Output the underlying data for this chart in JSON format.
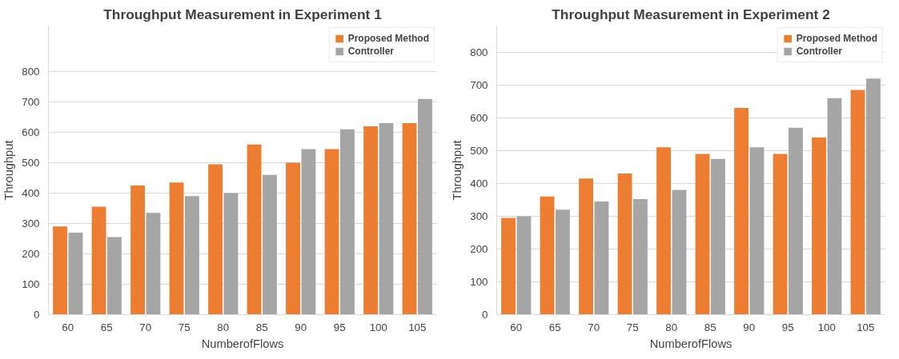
{
  "chart_data": [
    {
      "type": "bar",
      "title": "Throughput Measurement in Experiment 1",
      "xlabel": "NumberofFlows",
      "ylabel": "Throughput",
      "categories": [
        "60",
        "65",
        "70",
        "75",
        "80",
        "85",
        "90",
        "95",
        "100",
        "105"
      ],
      "series": [
        {
          "name": "Proposed Method",
          "color": "#ed7d31",
          "values": [
            290,
            355,
            425,
            435,
            495,
            560,
            500,
            545,
            620,
            630
          ]
        },
        {
          "name": "Controller",
          "color": "#a5a5a5",
          "values": [
            270,
            255,
            335,
            390,
            400,
            460,
            545,
            610,
            630,
            710
          ]
        }
      ],
      "ylim": [
        0,
        950
      ],
      "yticks": [
        0,
        100,
        200,
        300,
        400,
        500,
        600,
        700,
        800
      ],
      "grid": "y",
      "legend": "top right"
    },
    {
      "type": "bar",
      "title": "Throughput Measurement in Experiment 2",
      "xlabel": "NumberofFlows",
      "ylabel": "Throughput",
      "categories": [
        "60",
        "65",
        "70",
        "75",
        "80",
        "85",
        "90",
        "95",
        "100",
        "105"
      ],
      "series": [
        {
          "name": "Proposed Method",
          "color": "#ed7d31",
          "values": [
            295,
            360,
            415,
            430,
            510,
            490,
            630,
            490,
            540,
            685
          ]
        },
        {
          "name": "Controller",
          "color": "#a5a5a5",
          "values": [
            300,
            320,
            345,
            352,
            380,
            475,
            510,
            570,
            660,
            720
          ]
        }
      ],
      "ylim": [
        0,
        880
      ],
      "yticks": [
        0,
        100,
        200,
        300,
        400,
        500,
        600,
        700,
        800
      ],
      "grid": "y",
      "legend": "top right"
    }
  ]
}
